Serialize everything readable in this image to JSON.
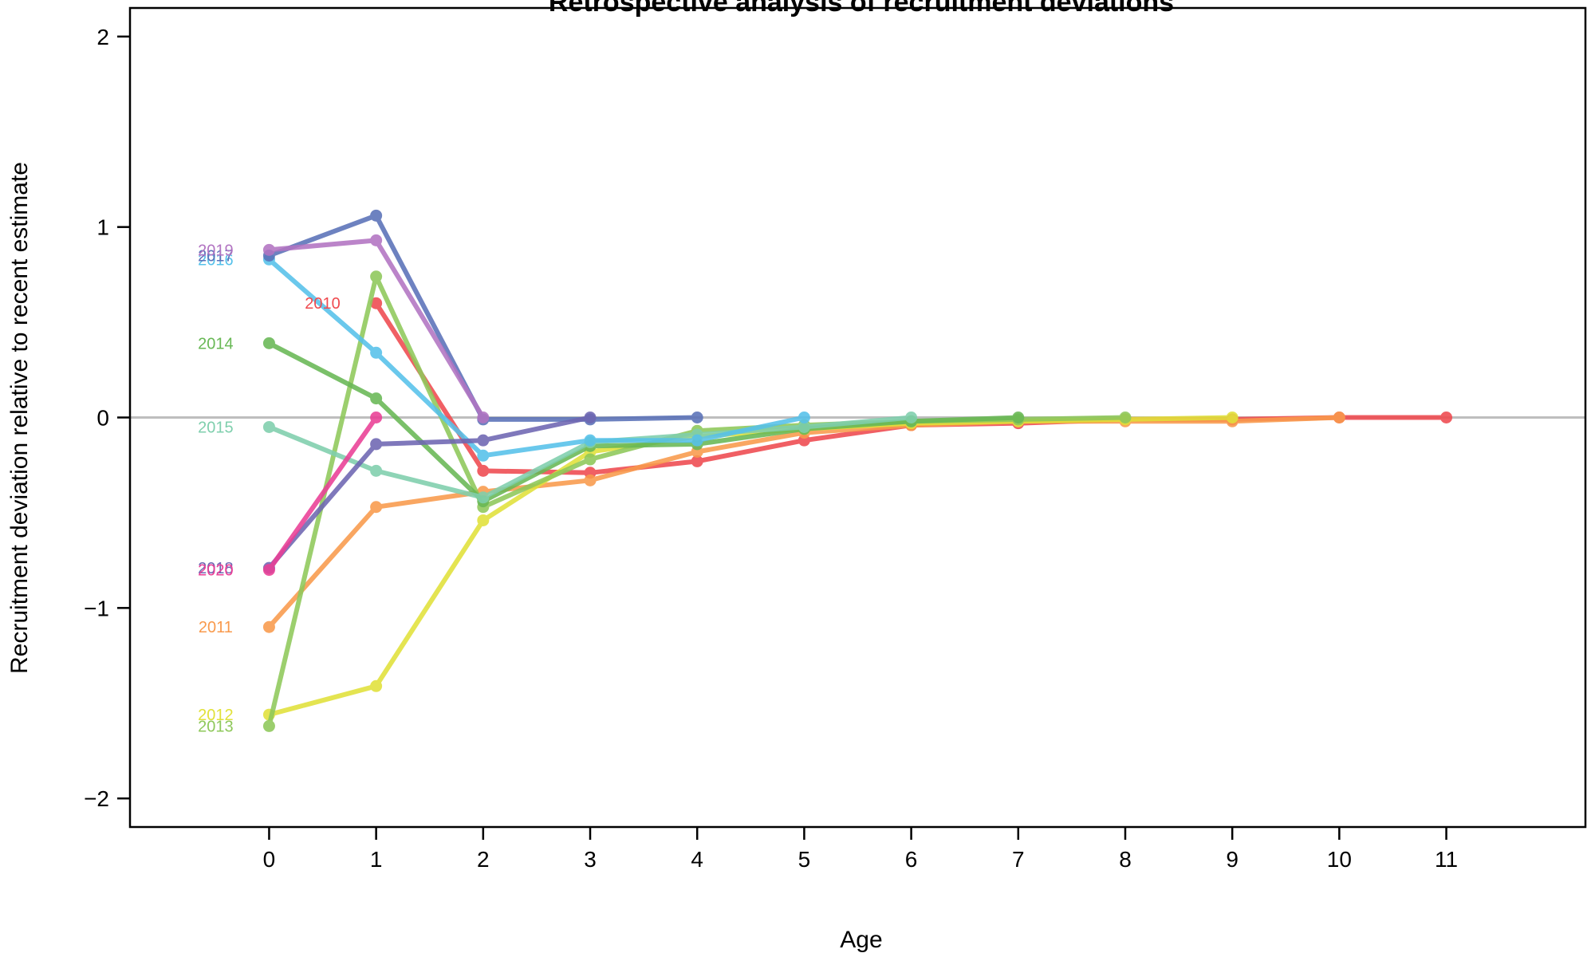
{
  "chart_data": {
    "type": "line",
    "title": "Retrospective analysis of recruitment deviations",
    "xlabel": "Age",
    "ylabel": "Recruitment deviation relative to recent estimate",
    "xlim": [
      -1.3,
      12.3
    ],
    "ylim": [
      -2.15,
      2.15
    ],
    "x_ticks": [
      0,
      1,
      2,
      3,
      4,
      5,
      6,
      7,
      8,
      9,
      10,
      11
    ],
    "x_tick_labels": [
      "0",
      "1",
      "2",
      "3",
      "4",
      "5",
      "6",
      "7",
      "8",
      "9",
      "10",
      "11"
    ],
    "y_ticks": [
      -2,
      -1,
      0,
      1,
      2
    ],
    "y_tick_labels": [
      "−2",
      "−1",
      "0",
      "1",
      "2"
    ],
    "reference_line": {
      "y": 0,
      "color": "#bebebe"
    },
    "grid": false,
    "series": [
      {
        "name": "2010",
        "color": "#ef4a4f",
        "label_x": 0.5,
        "x": [
          1,
          2,
          3,
          4,
          5,
          6,
          7,
          8,
          9,
          10,
          11
        ],
        "y": [
          0.6,
          -0.28,
          -0.29,
          -0.23,
          -0.12,
          -0.04,
          -0.03,
          -0.01,
          -0.01,
          0.0,
          0.0
        ]
      },
      {
        "name": "2011",
        "color": "#f99a4c",
        "label_x": -0.5,
        "x": [
          0,
          1,
          2,
          3,
          4,
          5,
          6,
          7,
          8,
          9,
          10
        ],
        "y": [
          -1.1,
          -0.47,
          -0.39,
          -0.33,
          -0.18,
          -0.08,
          -0.04,
          -0.02,
          -0.02,
          -0.02,
          0.0
        ]
      },
      {
        "name": "2012",
        "color": "#e1e13a",
        "label_x": -0.5,
        "x": [
          0,
          1,
          2,
          3,
          4,
          5,
          6,
          7,
          8,
          9
        ],
        "y": [
          -1.56,
          -1.41,
          -0.54,
          -0.18,
          -0.1,
          -0.06,
          -0.03,
          -0.02,
          -0.01,
          0.0
        ]
      },
      {
        "name": "2013",
        "color": "#8ec85a",
        "label_x": -0.5,
        "x": [
          0,
          1,
          2,
          3,
          4,
          5,
          6,
          7,
          8
        ],
        "y": [
          -1.62,
          0.74,
          -0.47,
          -0.22,
          -0.07,
          -0.04,
          -0.02,
          -0.01,
          0.0
        ]
      },
      {
        "name": "2014",
        "color": "#68b855",
        "label_x": -0.5,
        "x": [
          0,
          1,
          2,
          3,
          4,
          5,
          6,
          7
        ],
        "y": [
          0.39,
          0.1,
          -0.44,
          -0.15,
          -0.14,
          -0.06,
          -0.02,
          0.0
        ]
      },
      {
        "name": "2015",
        "color": "#7fcfad",
        "label_x": -0.5,
        "x": [
          0,
          1,
          2,
          3,
          4,
          5,
          6
        ],
        "y": [
          -0.05,
          -0.28,
          -0.42,
          -0.13,
          -0.09,
          -0.05,
          0.0
        ]
      },
      {
        "name": "2016",
        "color": "#56c1ea",
        "label_x": -0.5,
        "x": [
          0,
          1,
          2,
          3,
          4,
          5
        ],
        "y": [
          0.83,
          0.34,
          -0.2,
          -0.12,
          -0.12,
          0.0
        ]
      },
      {
        "name": "2017",
        "color": "#5a71b8",
        "label_x": -0.5,
        "x": [
          0,
          1,
          2,
          3,
          4
        ],
        "y": [
          0.85,
          1.06,
          -0.01,
          -0.01,
          0.0
        ]
      },
      {
        "name": "2018",
        "color": "#6e66b2",
        "label_x": -0.5,
        "x": [
          0,
          1,
          2,
          3
        ],
        "y": [
          -0.79,
          -0.14,
          -0.12,
          0.0
        ]
      },
      {
        "name": "2019",
        "color": "#b274c2",
        "label_x": -0.5,
        "x": [
          0,
          1,
          2
        ],
        "y": [
          0.88,
          0.93,
          0.0
        ]
      },
      {
        "name": "2020",
        "color": "#ea3f96",
        "label_x": -0.5,
        "x": [
          0,
          1
        ],
        "y": [
          -0.8,
          0.0
        ]
      }
    ]
  }
}
